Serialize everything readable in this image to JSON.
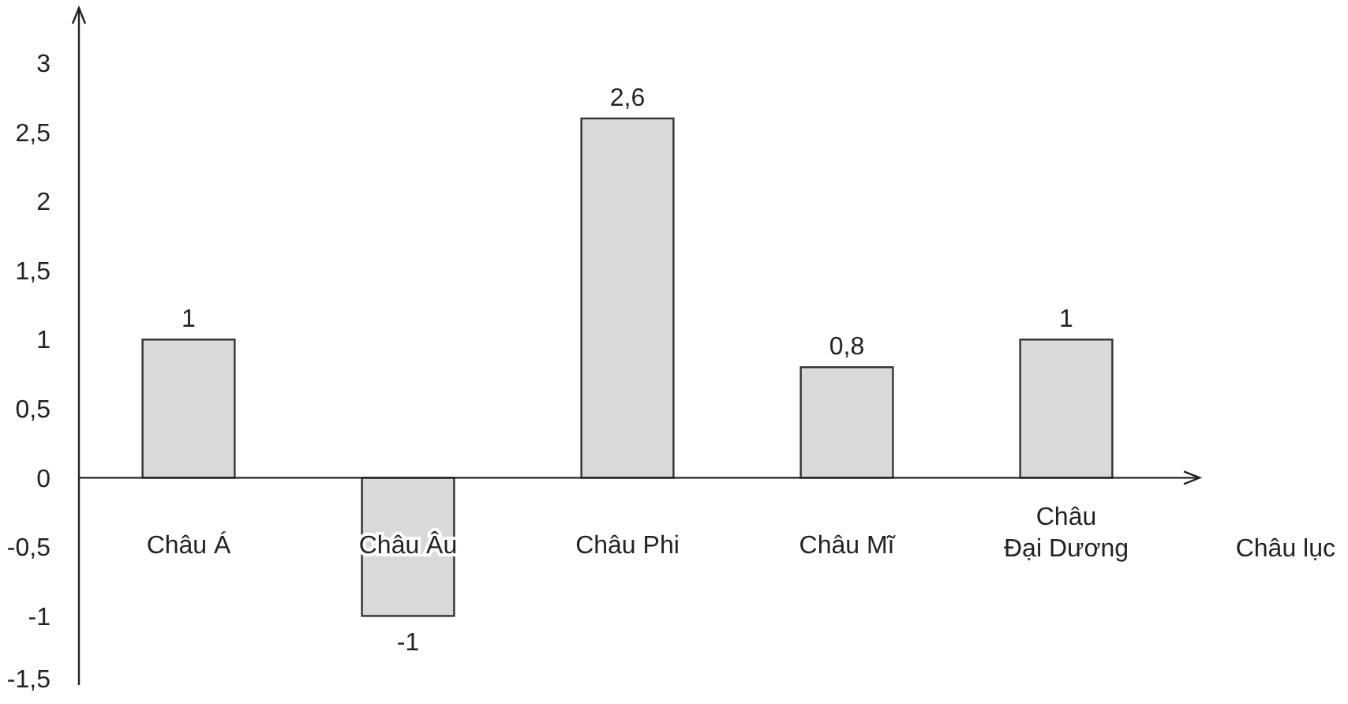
{
  "chart_data": {
    "type": "bar",
    "xlabel": "Châu lục",
    "categories": [
      "Châu Á",
      "Châu Âu",
      "Châu Phi",
      "Châu Mĩ",
      "Châu Đại Dương"
    ],
    "values": [
      1,
      -1,
      2.6,
      0.8,
      1
    ],
    "value_labels": [
      "1",
      "-1",
      "2,6",
      "0,8",
      "1"
    ],
    "color": "#d9d9d9",
    "ylim": [
      -1.5,
      3.4
    ],
    "yticks": [
      {
        "value": -1.5,
        "label": "-1,5"
      },
      -1,
      {
        "value": -0.5,
        "label": "-0,5"
      },
      0,
      {
        "value": 0.5,
        "label": "0,5"
      },
      1,
      {
        "value": 1.5,
        "label": "1,5"
      },
      2,
      {
        "value": 2.5,
        "label": "2,5"
      },
      3
    ],
    "grid": false
  }
}
